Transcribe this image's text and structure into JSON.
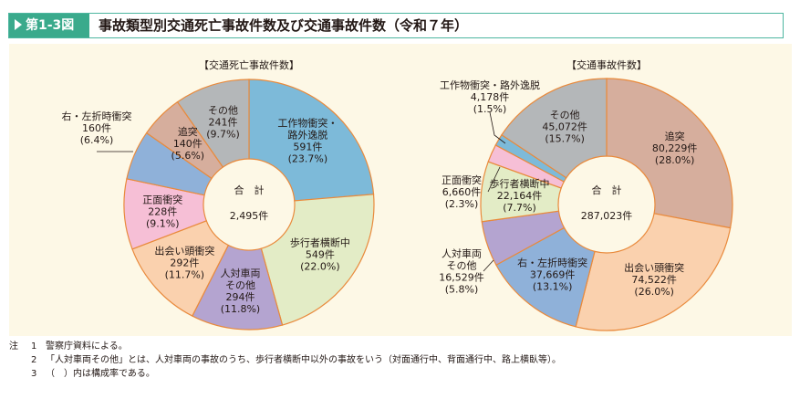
{
  "header": {
    "figure_no": "第1-3図",
    "title": "事故類型別交通死亡事故件数及び交通事故件数（令和７年）"
  },
  "chart_data": [
    {
      "type": "pie",
      "title": "【交通死亡事故件数】",
      "center_label": "合　計",
      "center_value": "2,495件",
      "unit": "件",
      "slices": [
        {
          "label": "工作物衝突・路外逸脱",
          "label_lines": [
            "工作物衝突・",
            "路外逸脱"
          ],
          "value_text": "591件",
          "pct_text": "(23.7%)",
          "value": 591,
          "pct": 23.7,
          "color": "#7dbad9"
        },
        {
          "label": "歩行者横断中",
          "label_lines": [
            "歩行者横断中"
          ],
          "value_text": "549件",
          "pct_text": "(22.0%)",
          "value": 549,
          "pct": 22.0,
          "color": "#e3ecc6"
        },
        {
          "label": "人対車両その他",
          "label_lines": [
            "人対車両",
            "その他"
          ],
          "value_text": "294件",
          "pct_text": "(11.8%)",
          "value": 294,
          "pct": 11.8,
          "color": "#b4a4d0"
        },
        {
          "label": "出会い頭衝突",
          "label_lines": [
            "出会い頭衝突"
          ],
          "value_text": "292件",
          "pct_text": "(11.7%)",
          "value": 292,
          "pct": 11.7,
          "color": "#fad1ae"
        },
        {
          "label": "正面衝突",
          "label_lines": [
            "正面衝突"
          ],
          "value_text": "228件",
          "pct_text": "(9.1%)",
          "value": 228,
          "pct": 9.1,
          "color": "#f6bfd6"
        },
        {
          "label": "右・左折時衝突",
          "label_lines": [
            "右・左折時衝突"
          ],
          "value_text": "160件",
          "pct_text": "(6.4%)",
          "value": 160,
          "pct": 6.4,
          "color": "#8fb1d9"
        },
        {
          "label": "追突",
          "label_lines": [
            "追突"
          ],
          "value_text": "140件",
          "pct_text": "(5.6%)",
          "value": 140,
          "pct": 5.6,
          "color": "#d6ae9d"
        },
        {
          "label": "その他",
          "label_lines": [
            "その他"
          ],
          "value_text": "241件",
          "pct_text": "(9.7%)",
          "value": 241,
          "pct": 9.7,
          "color": "#b4b7b9"
        }
      ]
    },
    {
      "type": "pie",
      "title": "【交通事故件数】",
      "center_label": "合　計",
      "center_value": "287,023件",
      "unit": "件",
      "slices": [
        {
          "label": "追突",
          "label_lines": [
            "追突"
          ],
          "value_text": "80,229件",
          "pct_text": "(28.0%)",
          "value": 80229,
          "pct": 28.0,
          "color": "#d6ae9d"
        },
        {
          "label": "出会い頭衝突",
          "label_lines": [
            "出会い頭衝突"
          ],
          "value_text": "74,522件",
          "pct_text": "(26.0%)",
          "value": 74522,
          "pct": 26.0,
          "color": "#fad1ae"
        },
        {
          "label": "右・左折時衝突",
          "label_lines": [
            "右・左折時衝突"
          ],
          "value_text": "37,669件",
          "pct_text": "(13.1%)",
          "value": 37669,
          "pct": 13.1,
          "color": "#8fb1d9"
        },
        {
          "label": "人対車両その他",
          "label_lines": [
            "人対車両",
            "その他"
          ],
          "value_text": "16,529件",
          "pct_text": "(5.8%)",
          "value": 16529,
          "pct": 5.8,
          "color": "#b4a4d0"
        },
        {
          "label": "歩行者横断中",
          "label_lines": [
            "歩行者横断中"
          ],
          "value_text": "22,164件",
          "pct_text": "(7.7%)",
          "value": 22164,
          "pct": 7.7,
          "color": "#e3ecc6"
        },
        {
          "label": "正面衝突",
          "label_lines": [
            "正面衝突"
          ],
          "value_text": "6,660件",
          "pct_text": "(2.3%)",
          "value": 6660,
          "pct": 2.3,
          "color": "#f6bfd6"
        },
        {
          "label": "工作物衝突・路外逸脱",
          "label_lines": [
            "工作物衝突・路外逸脱"
          ],
          "value_text": "4,178件",
          "pct_text": "(1.5%)",
          "value": 4178,
          "pct": 1.5,
          "color": "#7dbad9"
        },
        {
          "label": "その他",
          "label_lines": [
            "その他"
          ],
          "value_text": "45,072件",
          "pct_text": "(15.7%)",
          "value": 45072,
          "pct": 15.7,
          "color": "#b4b7b9"
        }
      ]
    }
  ],
  "notes": [
    {
      "mark": "注",
      "num": "1",
      "text": "警察庁資料による。"
    },
    {
      "mark": "",
      "num": "2",
      "text": "「人対車両その他」とは、人対車両の事故のうち、歩行者横断中以外の事故をいう（対面通行中、背面通行中、路上横臥等）。"
    },
    {
      "mark": "",
      "num": "3",
      "text": "（　）内は構成率である。"
    }
  ]
}
